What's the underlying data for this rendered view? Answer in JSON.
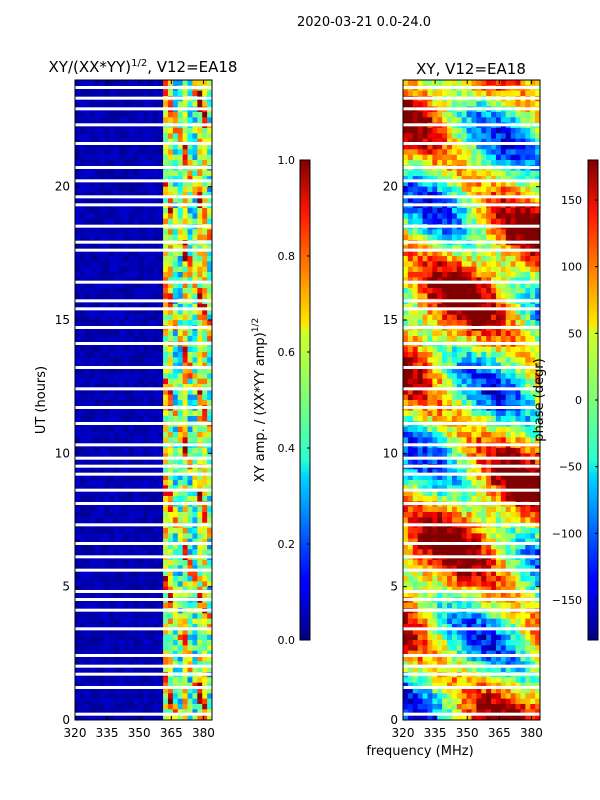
{
  "figure": {
    "suptitle": "2020-03-21 0.0-24.0",
    "xlabel_shared": "frequency (MHz)"
  },
  "chart_data": [
    {
      "type": "heatmap",
      "title": "XY/(XX*YY)",
      "title_exponent": "1/2",
      "title_suffix": ", V12=EA18",
      "xlabel": "",
      "ylabel": "UT (hours)",
      "xlim": [
        320,
        384
      ],
      "ylim": [
        0,
        24
      ],
      "xticks": [
        320,
        335,
        350,
        365,
        380
      ],
      "yticks": [
        0,
        5,
        10,
        15,
        20
      ],
      "colormap": "jet",
      "colorbar": {
        "label_main": "XY amp. / (XX*YY amp)",
        "label_exponent": "1/2",
        "range": [
          0.0,
          1.0
        ],
        "ticks": [
          "0.0",
          "0.2",
          "0.4",
          "0.6",
          "0.8",
          "1.0"
        ],
        "tick_values": [
          0.0,
          0.2,
          0.4,
          0.6,
          0.8,
          1.0
        ]
      },
      "flagged_ut_hours": [
        0.2,
        1.2,
        1.7,
        2.0,
        2.4,
        3.4,
        4.1,
        4.5,
        4.8,
        5.6,
        6.1,
        6.6,
        7.3,
        8.1,
        8.6,
        9.2,
        9.5,
        9.8,
        10.3,
        11.1,
        11.7,
        12.4,
        13.2,
        14.1,
        14.7,
        15.4,
        15.7,
        16.4,
        17.6,
        17.9,
        18.5,
        19.3,
        19.6,
        20.2,
        20.7,
        21.6,
        22.3,
        22.9,
        23.3,
        23.7
      ]
    },
    {
      "type": "heatmap",
      "title": "XY, V12=EA18",
      "xlabel": "frequency (MHz)",
      "ylabel": "",
      "xlim": [
        320,
        384
      ],
      "ylim": [
        0,
        24
      ],
      "xticks": [
        320,
        335,
        350,
        365,
        380
      ],
      "yticks": [
        0,
        5,
        10,
        15,
        20
      ],
      "colormap": "jet",
      "colorbar": {
        "label_main": "phase (degr)",
        "range": [
          -180,
          180
        ],
        "ticks": [
          "−150",
          "−100",
          "−50",
          "0",
          "50",
          "100",
          "150"
        ],
        "tick_values": [
          -150,
          -100,
          -50,
          0,
          50,
          100,
          150
        ]
      },
      "flagged_ut_hours": [
        0.2,
        1.2,
        1.7,
        2.0,
        2.4,
        3.4,
        4.1,
        4.5,
        4.8,
        5.6,
        6.1,
        6.6,
        7.3,
        8.1,
        8.6,
        9.2,
        9.5,
        9.8,
        10.3,
        11.1,
        11.7,
        12.4,
        13.2,
        14.1,
        14.7,
        15.4,
        15.7,
        16.4,
        17.6,
        17.9,
        18.5,
        19.3,
        19.6,
        20.2,
        20.7,
        21.6,
        22.3,
        22.9,
        23.3,
        23.7
      ]
    }
  ]
}
